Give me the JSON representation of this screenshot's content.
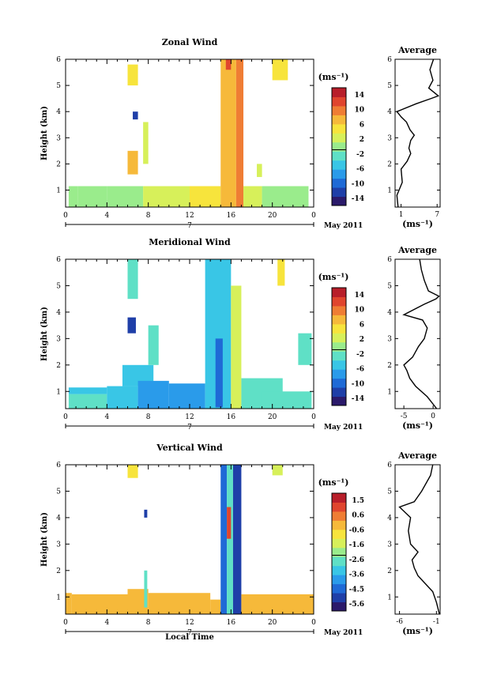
{
  "chart_data": [
    {
      "type": "heatmap",
      "title": "Zonal Wind",
      "ylabel": "Height (km)",
      "x_ticks": [
        "0",
        "4",
        "8",
        "12",
        "16",
        "20",
        "0"
      ],
      "y_ticks": [
        "1",
        "2",
        "3",
        "4",
        "5",
        "6"
      ],
      "xlim": [
        0,
        24
      ],
      "ylim": [
        0.35,
        6
      ],
      "date_label": "7",
      "month_label": "May 2011",
      "colorbar": {
        "unit": "(ms⁻¹)",
        "ticks": [
          "14",
          "10",
          "6",
          "2",
          "-2",
          "-6",
          "-10",
          "-14"
        ],
        "range": [
          -16,
          16
        ]
      },
      "average": {
        "title": "Average",
        "xlabel": "(ms⁻¹)",
        "x_ticks": [
          "1",
          "7"
        ],
        "xlim": [
          0,
          7.5
        ],
        "y_ticks": [
          "1",
          "2",
          "3",
          "4",
          "5",
          "6"
        ],
        "profile": [
          [
            0.5,
            0.35
          ],
          [
            0.3,
            0.8
          ],
          [
            1.2,
            1.3
          ],
          [
            1.0,
            1.8
          ],
          [
            2.0,
            2.1
          ],
          [
            2.6,
            2.4
          ],
          [
            2.3,
            2.6
          ],
          [
            2.6,
            2.9
          ],
          [
            3.2,
            3.1
          ],
          [
            2.5,
            3.3
          ],
          [
            1.9,
            3.6
          ],
          [
            1.0,
            3.8
          ],
          [
            0.3,
            4.0
          ],
          [
            3.5,
            4.3
          ],
          [
            6.0,
            4.5
          ],
          [
            7.2,
            4.6
          ],
          [
            5.6,
            4.9
          ],
          [
            6.3,
            5.2
          ],
          [
            5.8,
            5.6
          ],
          [
            6.4,
            6.0
          ]
        ]
      },
      "patches": [
        [
          0.3,
          1.2,
          0.35,
          1.15,
          0.0
        ],
        [
          1.2,
          4.0,
          0.35,
          1.15,
          -1.0
        ],
        [
          4.0,
          7.5,
          0.35,
          1.15,
          -0.5
        ],
        [
          7.5,
          12.0,
          0.35,
          1.15,
          2.0
        ],
        [
          12.0,
          15.0,
          0.35,
          1.15,
          4.0
        ],
        [
          15.0,
          16.5,
          0.35,
          6.0,
          9.0
        ],
        [
          16.5,
          17.2,
          0.35,
          6.0,
          11.0
        ],
        [
          17.2,
          19.0,
          0.35,
          1.15,
          2.0
        ],
        [
          19.0,
          23.5,
          0.35,
          1.15,
          -0.5
        ],
        [
          6.0,
          7.0,
          1.6,
          2.5,
          7.0
        ],
        [
          6.0,
          7.0,
          5.0,
          5.8,
          6.0
        ],
        [
          7.5,
          8.0,
          2.0,
          3.6,
          3.0
        ],
        [
          6.5,
          7.0,
          3.7,
          4.0,
          -14.0
        ],
        [
          18.5,
          19.0,
          1.5,
          2.0,
          3.0
        ],
        [
          20.0,
          21.5,
          5.2,
          6.0,
          5.0
        ],
        [
          15.5,
          16.0,
          5.6,
          6.0,
          13.0
        ]
      ]
    },
    {
      "type": "heatmap",
      "title": "Meridional Wind",
      "ylabel": "Height (km)",
      "x_ticks": [
        "0",
        "4",
        "8",
        "12",
        "16",
        "20",
        "0"
      ],
      "y_ticks": [
        "1",
        "2",
        "3",
        "4",
        "5",
        "6"
      ],
      "xlim": [
        0,
        24
      ],
      "ylim": [
        0.35,
        6
      ],
      "date_label": "7",
      "month_label": "May 2011",
      "colorbar": {
        "unit": "(ms⁻¹)",
        "ticks": [
          "14",
          "10",
          "6",
          "2",
          "-2",
          "-6",
          "-10",
          "-14"
        ],
        "range": [
          -16,
          16
        ]
      },
      "average": {
        "title": "Average",
        "xlabel": "(ms⁻¹)",
        "x_ticks": [
          "-5",
          "0"
        ],
        "xlim": [
          -6.5,
          1.2
        ],
        "y_ticks": [
          "1",
          "2",
          "3",
          "4",
          "5",
          "6"
        ],
        "profile": [
          [
            0.6,
            0.35
          ],
          [
            -1.0,
            0.8
          ],
          [
            -3.0,
            1.2
          ],
          [
            -4.0,
            1.5
          ],
          [
            -4.5,
            1.8
          ],
          [
            -5.0,
            2.0
          ],
          [
            -3.5,
            2.3
          ],
          [
            -2.5,
            2.7
          ],
          [
            -1.5,
            3.0
          ],
          [
            -1.0,
            3.4
          ],
          [
            -1.8,
            3.7
          ],
          [
            -5.0,
            3.9
          ],
          [
            -1.5,
            4.3
          ],
          [
            0.5,
            4.5
          ],
          [
            1.0,
            4.6
          ],
          [
            -0.8,
            4.8
          ],
          [
            -1.5,
            5.2
          ],
          [
            -2.0,
            5.6
          ],
          [
            -2.3,
            6.0
          ]
        ]
      },
      "patches": [
        [
          0.3,
          4.0,
          0.35,
          0.9,
          -3.0
        ],
        [
          0.3,
          4.0,
          0.9,
          1.15,
          -6.0
        ],
        [
          4.0,
          7.0,
          0.35,
          1.2,
          -5.0
        ],
        [
          5.5,
          8.5,
          1.2,
          2.0,
          -6.0
        ],
        [
          7.0,
          10.0,
          0.35,
          1.4,
          -8.0
        ],
        [
          10.0,
          13.5,
          0.35,
          1.3,
          -7.0
        ],
        [
          13.5,
          16.0,
          0.35,
          6.0,
          -6.0
        ],
        [
          14.5,
          15.2,
          0.4,
          3.0,
          -11.0
        ],
        [
          16.0,
          17.0,
          0.35,
          5.0,
          3.0
        ],
        [
          17.0,
          21.0,
          0.35,
          1.5,
          -4.0
        ],
        [
          19.0,
          23.8,
          0.35,
          1.0,
          -2.0
        ],
        [
          6.0,
          6.8,
          3.2,
          3.8,
          -14.0
        ],
        [
          6.0,
          7.0,
          4.5,
          6.0,
          -3.0
        ],
        [
          8.0,
          9.0,
          2.0,
          3.5,
          -3.0
        ],
        [
          20.5,
          21.2,
          5.0,
          6.0,
          4.0
        ],
        [
          22.5,
          23.8,
          2.0,
          3.2,
          -3.0
        ]
      ]
    },
    {
      "type": "heatmap",
      "title": "Vertical Wind",
      "ylabel": "Height (km)",
      "xlabel": "Local Time",
      "x_ticks": [
        "0",
        "4",
        "8",
        "12",
        "16",
        "20",
        "0"
      ],
      "y_ticks": [
        "1",
        "2",
        "3",
        "4",
        "5",
        "6"
      ],
      "xlim": [
        0,
        24
      ],
      "ylim": [
        0.35,
        6
      ],
      "date_label": "7",
      "month_label": "May 2011",
      "colorbar": {
        "unit": "(ms⁻¹)",
        "ticks": [
          "1.5",
          "0.6",
          "-0.6",
          "-1.6",
          "-2.6",
          "-3.6",
          "-4.5",
          "-5.6"
        ],
        "range": [
          -6.0,
          2.0
        ]
      },
      "average": {
        "title": "Average",
        "xlabel": "(ms⁻¹)",
        "x_ticks": [
          "-6",
          "-1"
        ],
        "xlim": [
          -6.6,
          -0.5
        ],
        "y_ticks": [
          "1",
          "2",
          "3",
          "4",
          "5",
          "6"
        ],
        "profile": [
          [
            -0.6,
            0.35
          ],
          [
            -1.0,
            0.8
          ],
          [
            -1.5,
            1.2
          ],
          [
            -2.5,
            1.5
          ],
          [
            -3.5,
            1.8
          ],
          [
            -4.0,
            2.1
          ],
          [
            -4.3,
            2.4
          ],
          [
            -3.5,
            2.7
          ],
          [
            -4.5,
            3.0
          ],
          [
            -4.8,
            3.5
          ],
          [
            -4.5,
            4.0
          ],
          [
            -6.0,
            4.4
          ],
          [
            -4.0,
            4.6
          ],
          [
            -3.0,
            5.0
          ],
          [
            -1.8,
            5.6
          ],
          [
            -1.5,
            6.0
          ]
        ]
      },
      "patches": [
        [
          0.0,
          0.6,
          0.35,
          1.15,
          0.3
        ],
        [
          0.6,
          6.0,
          0.35,
          1.1,
          0.3
        ],
        [
          6.0,
          8.0,
          0.35,
          1.3,
          -0.2
        ],
        [
          8.0,
          14.0,
          0.35,
          1.15,
          0.0
        ],
        [
          14.0,
          15.0,
          0.35,
          0.9,
          -0.3
        ],
        [
          15.0,
          15.6,
          0.35,
          6.0,
          -5.0
        ],
        [
          15.6,
          16.2,
          0.35,
          6.0,
          -2.8
        ],
        [
          16.2,
          17.0,
          0.35,
          6.0,
          -5.5
        ],
        [
          17.0,
          24.0,
          0.35,
          1.1,
          0.1
        ],
        [
          7.6,
          7.9,
          0.6,
          2.0,
          -3.0
        ],
        [
          6.0,
          7.0,
          5.5,
          6.0,
          -1.0
        ],
        [
          7.6,
          7.9,
          4.0,
          4.3,
          -5.6
        ],
        [
          20.0,
          21.0,
          5.6,
          6.0,
          -1.5
        ],
        [
          15.6,
          16.0,
          3.2,
          4.4,
          1.5
        ]
      ]
    }
  ]
}
